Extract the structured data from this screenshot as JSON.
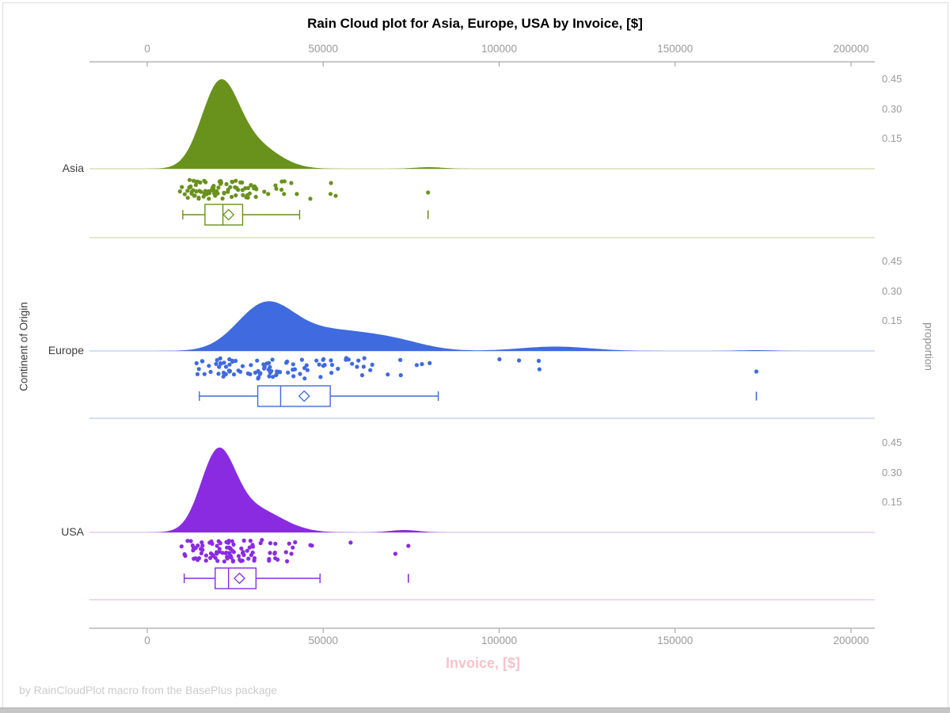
{
  "chart_data": {
    "type": "raincloud",
    "title": "Rain Cloud plot for Asia, Europe, USA by Invoice, [$]",
    "xlabel": "Invoice, [$]",
    "ylabel_left": "Continent of Origin",
    "ylabel_right": "proportion",
    "footnote": "by RainCloudPlot macro from the BasePlus package",
    "x_ticks": [
      0,
      50000,
      100000,
      150000,
      200000
    ],
    "x_range": [
      -16400,
      206700
    ],
    "proportion_ticks": [
      0.45,
      0.3,
      0.15
    ],
    "grid": false,
    "legend": "none",
    "groups": [
      {
        "label": "Asia",
        "color": "#69921d",
        "tint": "#d2dcab",
        "box": {
          "whisker_low": 10100,
          "q1": 16400,
          "median": 21500,
          "mean": 23100,
          "q3": 27100,
          "whisker_high": 43300,
          "far_outlier": 79800
        },
        "density_peak": 0.45,
        "density_bumps": [
          {
            "a": 0.4,
            "m": 20500,
            "s": 5200
          },
          {
            "a": 0.12,
            "m": 30000,
            "s": 7000
          },
          {
            "a": 0.008,
            "m": 80000,
            "s": 4000
          }
        ],
        "scatter": {
          "n": 100,
          "median": 21500,
          "log_sigma": 0.38,
          "min": 9000,
          "max": 56000,
          "extras": [
            79800
          ],
          "seed": 11
        }
      },
      {
        "label": "Europe",
        "color": "#3f6ae0",
        "tint": "#bac9f0",
        "box": {
          "whisker_low": 14800,
          "q1": 31400,
          "median": 37900,
          "mean": 44600,
          "q3": 52000,
          "whisker_high": 82700,
          "far_outlier": 173100
        },
        "density_peak": 0.26,
        "density_bumps": [
          {
            "a": 0.225,
            "m": 33500,
            "s": 8000
          },
          {
            "a": 0.095,
            "m": 52000,
            "s": 11000
          },
          {
            "a": 0.045,
            "m": 70000,
            "s": 9000
          },
          {
            "a": 0.022,
            "m": 116000,
            "s": 10000
          },
          {
            "a": 0.004,
            "m": 173000,
            "s": 5000
          }
        ],
        "scatter": {
          "n": 105,
          "median": 38000,
          "log_sigma": 0.48,
          "min": 14000,
          "max": 128000,
          "extras": [
            173100
          ],
          "seed": 22
        }
      },
      {
        "label": "USA",
        "color": "#8a2be2",
        "tint": "#dcc2f2",
        "box": {
          "whisker_low": 10500,
          "q1": 19300,
          "median": 23100,
          "mean": 26200,
          "q3": 30900,
          "whisker_high": 49100,
          "far_outlier": 74200
        },
        "density_peak": 0.43,
        "density_bumps": [
          {
            "a": 0.37,
            "m": 20000,
            "s": 4800
          },
          {
            "a": 0.12,
            "m": 30000,
            "s": 8000
          },
          {
            "a": 0.012,
            "m": 73000,
            "s": 4000
          }
        ],
        "scatter": {
          "n": 100,
          "median": 23000,
          "log_sigma": 0.4,
          "min": 9500,
          "max": 62000,
          "extras": [
            70500,
            74200
          ],
          "seed": 33
        }
      }
    ]
  },
  "colors": {
    "title": "#000000",
    "axis_text": "#9a9a9a",
    "category_text": "#3d3d3d",
    "xlabel_pink": "#f9c2ce",
    "footnote": "#cccccc",
    "axis_line": "#a8a8a8",
    "frame_border": "#dcdcdc",
    "bottom_strip": "#c6c6c6",
    "box_fill": "#ffffff"
  }
}
